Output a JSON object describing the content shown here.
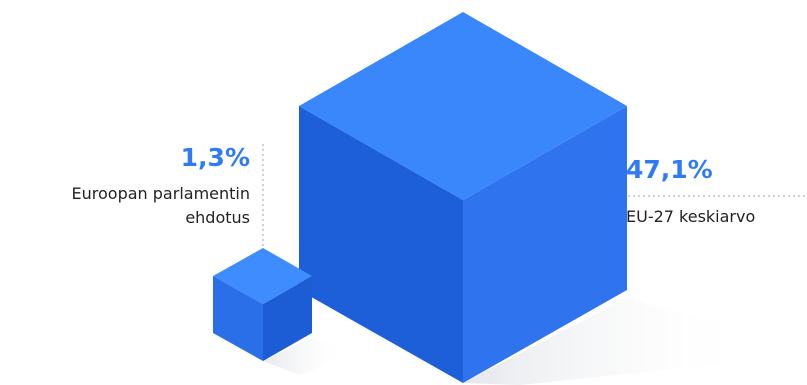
{
  "colors": {
    "accent": "#2f7bf5",
    "small_cube_top": "#3f8cff",
    "small_cube_left": "#2a6fe8",
    "small_cube_right": "#1c5dd6",
    "large_cube_top": "#3a86fb",
    "large_cube_left": "#1d5fd9",
    "large_cube_right": "#2f73ee",
    "guide_line": "#9aa4b2"
  },
  "small_item": {
    "value": "1,3%",
    "label_line1": "Euroopan parlamentin",
    "label_line2": "ehdotus"
  },
  "large_item": {
    "value": "47,1%",
    "label": "EU-27 keskiarvo"
  }
}
